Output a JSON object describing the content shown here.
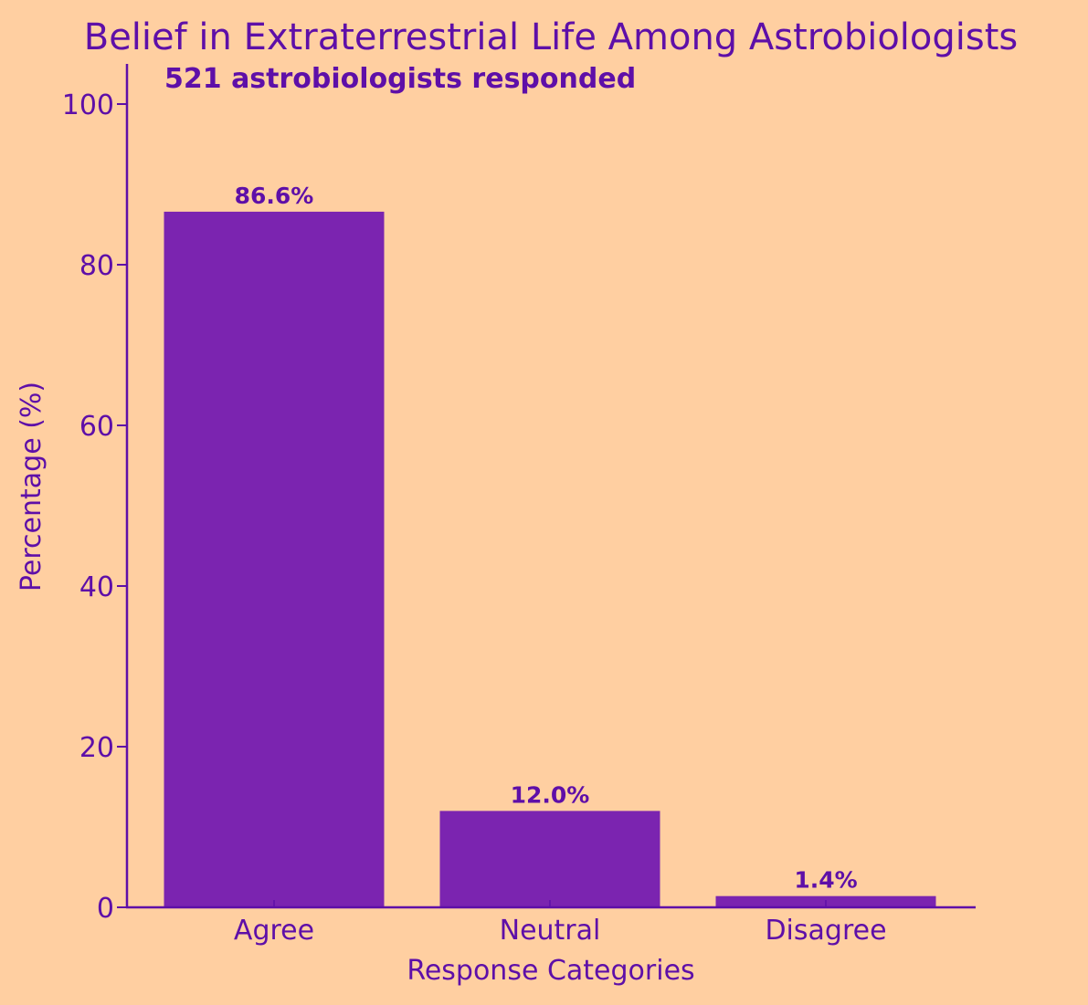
{
  "chart_data": {
    "type": "bar",
    "title": "Belief in Extraterrestrial Life Among Astrobiologists",
    "subtitle": "521 astrobiologists responded",
    "xlabel": "Response Categories",
    "ylabel": "Percentage (%)",
    "categories": [
      "Agree",
      "Neutral",
      "Disagree"
    ],
    "values": [
      86.6,
      12.0,
      1.4
    ],
    "data_labels": [
      "86.6%",
      "12.0%",
      "1.4%"
    ],
    "ylim": [
      0,
      105
    ],
    "yticks": [
      0,
      20,
      40,
      60,
      80,
      100
    ],
    "ytick_labels": [
      "0",
      "20",
      "40",
      "60",
      "80",
      "100"
    ],
    "grid": false,
    "colors": {
      "background": "#FFCFA1",
      "bar": "#7B24B0",
      "text": "#5E0FA8",
      "axis": "#5E0FA8"
    }
  }
}
